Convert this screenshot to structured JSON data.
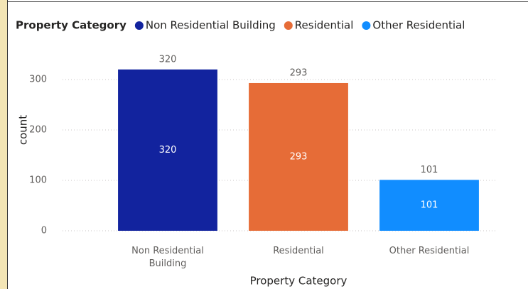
{
  "chart_data": {
    "type": "bar",
    "legend_title": "Property Category",
    "categories": [
      "Non Residential Building",
      "Residential",
      "Other Residential"
    ],
    "values": [
      320,
      293,
      101
    ],
    "colors": [
      "#12239e",
      "#e66c37",
      "#118dff"
    ],
    "x_label": "Property Category",
    "y_label": "count",
    "ylim": [
      0,
      330
    ],
    "yticks": [
      0,
      100,
      200,
      300
    ],
    "grid": true,
    "legend": "top-left"
  }
}
